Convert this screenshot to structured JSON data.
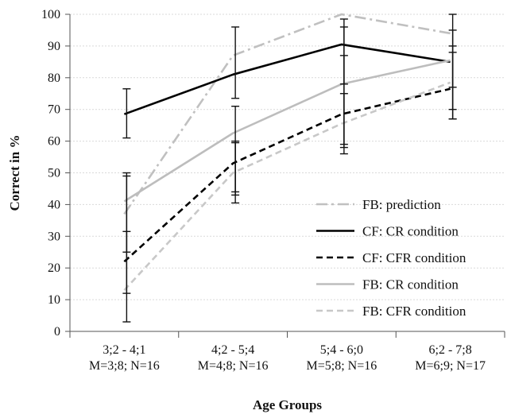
{
  "chart_data": {
    "type": "line",
    "title": "",
    "xlabel": "Age Groups",
    "ylabel": "Correct in %",
    "ylim": [
      0,
      100
    ],
    "yticks": [
      0,
      10,
      20,
      30,
      40,
      50,
      60,
      70,
      80,
      90,
      100
    ],
    "grid": true,
    "legend_position": "bottom-right",
    "categories": [
      {
        "line1": "3;2 - 4;1",
        "line2": "M=3;8; N=16"
      },
      {
        "line1": "4;2 - 5;4",
        "line2": "M=4;8; N=16"
      },
      {
        "line1": "5;4 - 6;0",
        "line2": "M=5;8; N=16"
      },
      {
        "line1": "6;2 - 7;8",
        "line2": "M=6;9; N=17"
      }
    ],
    "series": [
      {
        "name": "FB: prediction",
        "values": [
          37,
          87,
          100,
          94
        ],
        "color": "#c0c0c0",
        "style": "dashdot",
        "error": null
      },
      {
        "name": "CF: CR condition",
        "values": [
          68.5,
          81,
          90.5,
          85
        ],
        "color": "#000000",
        "style": "solid",
        "error": [
          [
            61,
            76.5
          ],
          [
            73.5,
            96
          ],
          [
            78,
            98.5
          ],
          [
            67,
            100
          ]
        ]
      },
      {
        "name": "CF: CFR condition",
        "values": [
          22,
          53,
          68.5,
          76.5
        ],
        "color": "#000000",
        "style": "dashed",
        "error": [
          [
            12,
            31.5
          ],
          [
            44,
            60
          ],
          [
            56,
            87
          ],
          [
            70,
            88
          ]
        ]
      },
      {
        "name": "FB: CR condition",
        "values": [
          41,
          62.5,
          78,
          85.5
        ],
        "color": "#bdbdbd",
        "style": "solid",
        "error": [
          [
            25,
            50
          ],
          [
            43,
            71
          ],
          [
            59,
            96
          ],
          [
            77,
            95
          ]
        ]
      },
      {
        "name": "FB: CFR condition",
        "values": [
          13,
          50,
          65.5,
          78.5
        ],
        "color": "#c8c8c8",
        "style": "dashed",
        "error": [
          [
            3,
            49
          ],
          [
            40.5,
            59.5
          ],
          [
            58,
            75
          ],
          [
            67,
            90
          ]
        ]
      }
    ]
  }
}
